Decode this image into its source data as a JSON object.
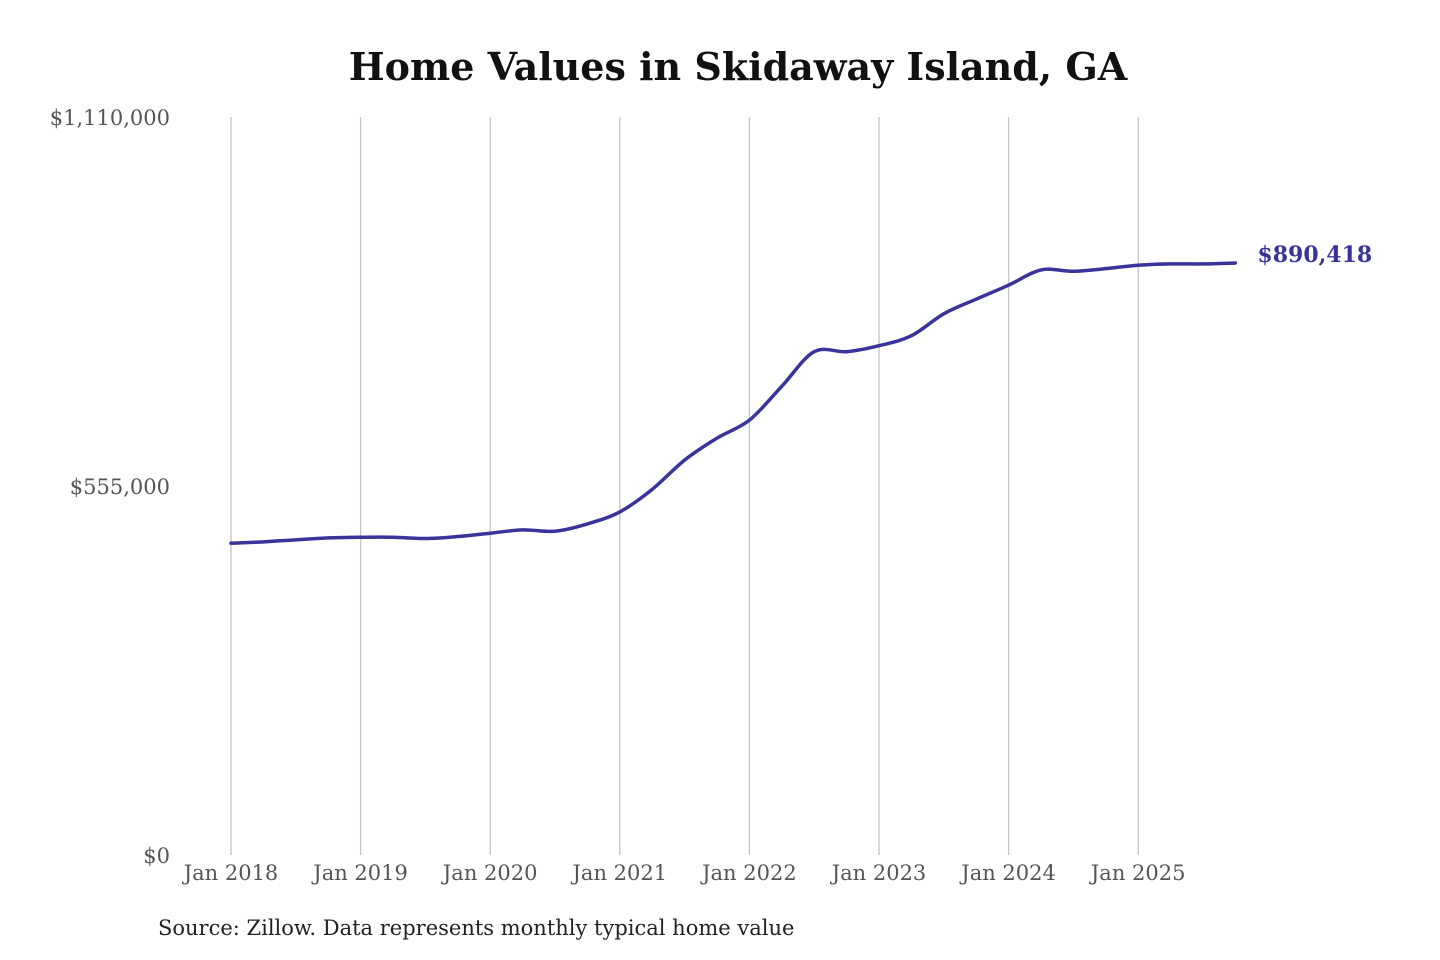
{
  "chart_data": {
    "type": "line",
    "title": "Home Values in Skidaway Island, GA",
    "source": "Source: Zillow. Data represents monthly typical home value",
    "ylim": [
      0,
      1110000
    ],
    "yticks": [
      {
        "value": 0,
        "label": "$0"
      },
      {
        "value": 555000,
        "label": "$555,000"
      },
      {
        "value": 1110000,
        "label": "$1,110,000"
      }
    ],
    "xticks": [
      {
        "date": "2018-01",
        "label": "Jan 2018"
      },
      {
        "date": "2019-01",
        "label": "Jan 2019"
      },
      {
        "date": "2020-01",
        "label": "Jan 2020"
      },
      {
        "date": "2021-01",
        "label": "Jan 2021"
      },
      {
        "date": "2022-01",
        "label": "Jan 2022"
      },
      {
        "date": "2023-01",
        "label": "Jan 2023"
      },
      {
        "date": "2024-01",
        "label": "Jan 2024"
      },
      {
        "date": "2025-01",
        "label": "Jan 2025"
      }
    ],
    "grid": "vertical",
    "line_color": "#3a339a",
    "end_label": "$890,418",
    "series": [
      {
        "x": [
          "2018-01",
          "2018-04",
          "2018-07",
          "2018-10",
          "2019-01",
          "2019-04",
          "2019-07",
          "2019-10",
          "2020-01",
          "2020-04",
          "2020-07",
          "2020-10",
          "2021-01",
          "2021-04",
          "2021-07",
          "2021-10",
          "2022-01",
          "2022-04",
          "2022-07",
          "2022-10",
          "2023-01",
          "2023-04",
          "2023-07",
          "2023-10",
          "2024-01",
          "2024-04",
          "2024-07",
          "2024-10",
          "2025-01",
          "2025-04",
          "2025-07",
          "2025-10"
        ],
        "values": [
          469000,
          471000,
          474000,
          477000,
          478000,
          478000,
          476000,
          479000,
          484000,
          489000,
          487000,
          498000,
          516000,
          550000,
          594000,
          627000,
          654000,
          705000,
          757000,
          757000,
          766000,
          781000,
          814000,
          836000,
          857000,
          880000,
          878000,
          882000,
          887000,
          889000,
          889000,
          890418
        ]
      }
    ]
  }
}
